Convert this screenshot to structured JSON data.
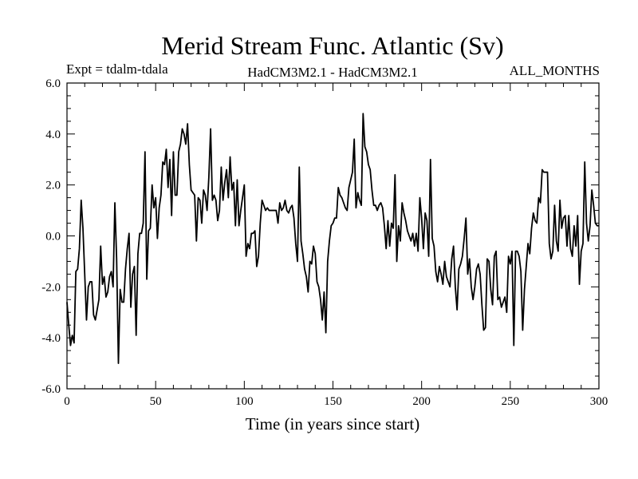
{
  "chart_data": {
    "type": "line",
    "title": "Merid Stream Func. Atlantic (Sv)",
    "subtitle_left": "Expt = tdalm-tdala",
    "subtitle_center": "HadCM3M2.1 - HadCM3M2.1",
    "subtitle_right": "ALL_MONTHS",
    "xlabel": "Time (in years since start)",
    "ylabel": "",
    "xlim": [
      0,
      300
    ],
    "ylim": [
      -6,
      6
    ],
    "x_ticks": [
      0,
      50,
      100,
      150,
      200,
      250,
      300
    ],
    "x_tick_labels": [
      "0",
      "50",
      "100",
      "150",
      "200",
      "250",
      "300"
    ],
    "y_ticks": [
      6,
      4,
      2,
      0,
      -2,
      -4,
      -6
    ],
    "y_tick_labels": [
      "6.0",
      "4.0",
      "2.0",
      "0.0",
      "-2.0",
      "-4.0",
      "-6.0"
    ],
    "series": [
      {
        "name": "Merid Stream Func. Atlantic",
        "x_start": 0,
        "x_step": 1,
        "values": [
          -2.6,
          -3.5,
          -4.3,
          -3.9,
          -4.2,
          -1.4,
          -1.3,
          -0.5,
          1.4,
          0.3,
          -1.5,
          -3.3,
          -2.0,
          -1.8,
          -1.8,
          -3.1,
          -3.3,
          -2.9,
          -2.5,
          -0.4,
          -1.9,
          -1.6,
          -2.4,
          -2.2,
          -1.6,
          -1.4,
          -2.0,
          1.3,
          -0.9,
          -5.0,
          -2.1,
          -2.6,
          -2.6,
          -1.3,
          -0.5,
          0.1,
          -2.8,
          -1.5,
          -1.2,
          -3.9,
          -0.7,
          0.1,
          0.1,
          0.5,
          3.3,
          -1.7,
          0.2,
          0.3,
          2.0,
          1.1,
          1.5,
          -0.1,
          1.1,
          1.6,
          2.9,
          2.8,
          3.4,
          1.9,
          3.0,
          0.8,
          3.3,
          1.6,
          1.6,
          3.3,
          3.6,
          4.2,
          4.0,
          3.6,
          4.4,
          2.8,
          1.8,
          1.7,
          1.6,
          -0.2,
          1.5,
          1.4,
          0.5,
          1.8,
          1.6,
          1.0,
          2.3,
          4.2,
          1.4,
          1.6,
          1.4,
          0.6,
          1.0,
          2.7,
          1.4,
          2.1,
          2.6,
          1.5,
          3.1,
          1.8,
          2.1,
          0.4,
          2.2,
          0.4,
          1.0,
          1.5,
          2.0,
          -0.8,
          -0.3,
          -0.5,
          0.1,
          0.1,
          0.2,
          -1.2,
          -0.8,
          0.5,
          1.4,
          1.2,
          1.0,
          1.1,
          1.0,
          1.0,
          1.0,
          1.0,
          1.0,
          0.5,
          1.3,
          1.0,
          1.1,
          1.4,
          1.0,
          0.9,
          1.1,
          1.2,
          0.7,
          -0.3,
          -1.0,
          2.7,
          -0.2,
          -0.7,
          -1.3,
          -1.6,
          -2.2,
          -1.0,
          -1.1,
          -0.4,
          -0.7,
          -1.8,
          -2.0,
          -2.5,
          -3.3,
          -2.2,
          -3.8,
          -1.0,
          -0.2,
          0.4,
          0.5,
          0.7,
          0.7,
          1.9,
          1.6,
          1.5,
          1.3,
          1.1,
          1.0,
          1.9,
          2.2,
          2.5,
          3.8,
          1.1,
          1.7,
          1.4,
          1.2,
          4.8,
          3.5,
          3.3,
          2.8,
          2.6,
          1.8,
          1.2,
          1.2,
          1.0,
          1.2,
          1.3,
          1.1,
          0.4,
          -0.5,
          0.6,
          -0.4,
          0.5,
          0.3,
          2.4,
          -1.0,
          0.4,
          -0.2,
          1.3,
          0.9,
          0.6,
          0.2,
          0.0,
          -0.2,
          0.1,
          -0.4,
          0.1,
          -0.6,
          1.5,
          0.7,
          -0.5,
          0.9,
          0.6,
          -0.8,
          3.0,
          -0.1,
          -0.4,
          -1.4,
          -1.8,
          -1.2,
          -1.5,
          -1.9,
          -1.0,
          -1.6,
          -1.8,
          -2.0,
          -0.9,
          -0.4,
          -2.0,
          -2.9,
          -1.3,
          -1.1,
          -0.8,
          -0.1,
          0.7,
          -1.5,
          -0.9,
          -2.0,
          -2.5,
          -2.0,
          -1.3,
          -1.1,
          -1.5,
          -2.7,
          -3.7,
          -3.6,
          -0.9,
          -1.0,
          -2.1,
          -2.7,
          -0.8,
          -0.6,
          -2.5,
          -2.4,
          -2.8,
          -2.6,
          -2.4,
          -3.0,
          -0.8,
          -1.1,
          -0.6,
          -4.3,
          -0.6,
          -0.6,
          -0.8,
          -1.4,
          -3.7,
          -2.1,
          -1.2,
          -0.3,
          -0.7,
          0.3,
          0.9,
          0.6,
          0.5,
          1.5,
          1.3,
          2.6,
          2.5,
          2.5,
          2.5,
          -0.3,
          -0.9,
          -0.6,
          1.2,
          -0.2,
          -0.6,
          1.4,
          0.3,
          0.7,
          0.8,
          -0.4,
          0.8,
          -0.5,
          -0.8,
          0.4,
          -0.4,
          0.8,
          -1.9,
          -0.6,
          -0.3,
          2.9,
          0.5,
          -0.2,
          0.4,
          1.8,
          1.2,
          0.5,
          0.4,
          0.4
        ]
      }
    ]
  }
}
